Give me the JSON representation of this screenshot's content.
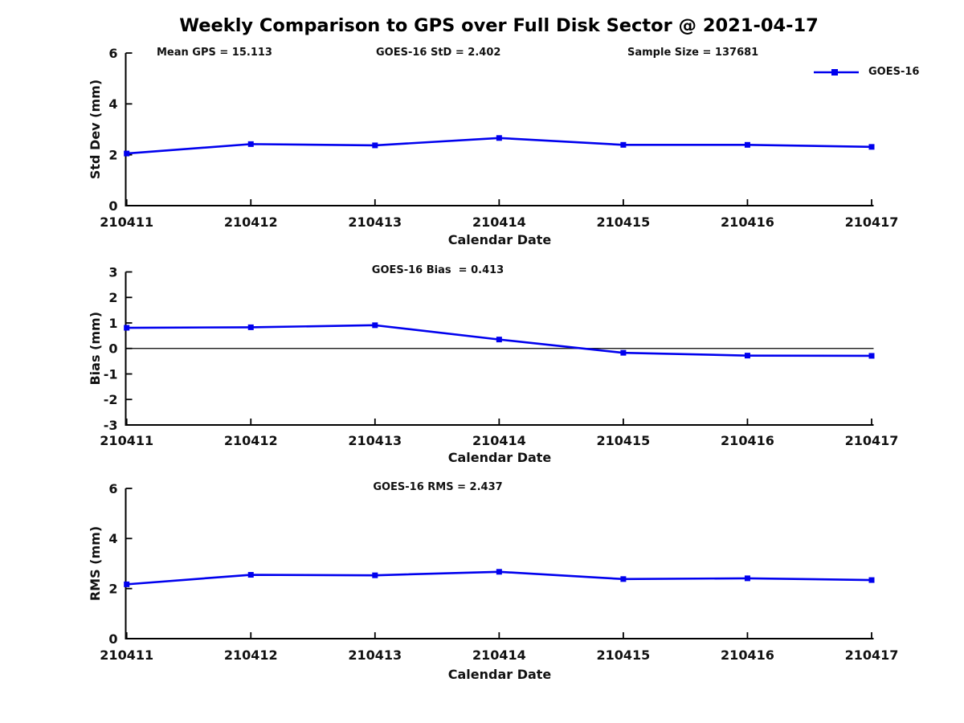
{
  "page": {
    "title": "Weekly Comparison to GPS over Full Disk Sector @ 2021-04-17"
  },
  "colors": {
    "line": "#0000EE",
    "axis": "#000000",
    "text": "#111111"
  },
  "legend": {
    "position": "upper right"
  },
  "chart_data": [
    {
      "type": "line",
      "name": "std-dev",
      "title": "",
      "annotations": [
        "Mean GPS = 15.113",
        "GOES-16 StD = 2.402",
        "Sample Size = 137681"
      ],
      "categories": [
        "210411",
        "210412",
        "210413",
        "210414",
        "210415",
        "210416",
        "210417"
      ],
      "series": [
        {
          "name": "GOES-16",
          "values": [
            2.05,
            2.42,
            2.37,
            2.66,
            2.39,
            2.39,
            2.31
          ]
        }
      ],
      "xlabel": "Calendar Date",
      "ylabel": "Std Dev (mm)",
      "ylim": [
        0,
        6
      ],
      "yticks": [
        0,
        2,
        4,
        6
      ],
      "grid": false,
      "legend_position": "upper right",
      "zero_line": false
    },
    {
      "type": "line",
      "name": "bias",
      "title": "GOES-16 Bias  = 0.413",
      "categories": [
        "210411",
        "210412",
        "210413",
        "210414",
        "210415",
        "210416",
        "210417"
      ],
      "series": [
        {
          "name": "GOES-16",
          "values": [
            0.81,
            0.83,
            0.91,
            0.35,
            -0.17,
            -0.28,
            -0.29
          ]
        }
      ],
      "xlabel": "Calendar Date",
      "ylabel": "Bias (mm)",
      "ylim": [
        -3,
        3
      ],
      "yticks": [
        -3,
        -2,
        -1,
        0,
        1,
        2,
        3
      ],
      "grid": false,
      "zero_line": true
    },
    {
      "type": "line",
      "name": "rms",
      "title": "GOES-16 RMS = 2.437",
      "categories": [
        "210411",
        "210412",
        "210413",
        "210414",
        "210415",
        "210416",
        "210417"
      ],
      "series": [
        {
          "name": "GOES-16",
          "values": [
            2.17,
            2.55,
            2.53,
            2.67,
            2.38,
            2.41,
            2.34
          ]
        }
      ],
      "xlabel": "Calendar Date",
      "ylabel": "RMS (mm)",
      "ylim": [
        0,
        6
      ],
      "yticks": [
        0,
        2,
        4,
        6
      ],
      "grid": false,
      "zero_line": false
    }
  ]
}
